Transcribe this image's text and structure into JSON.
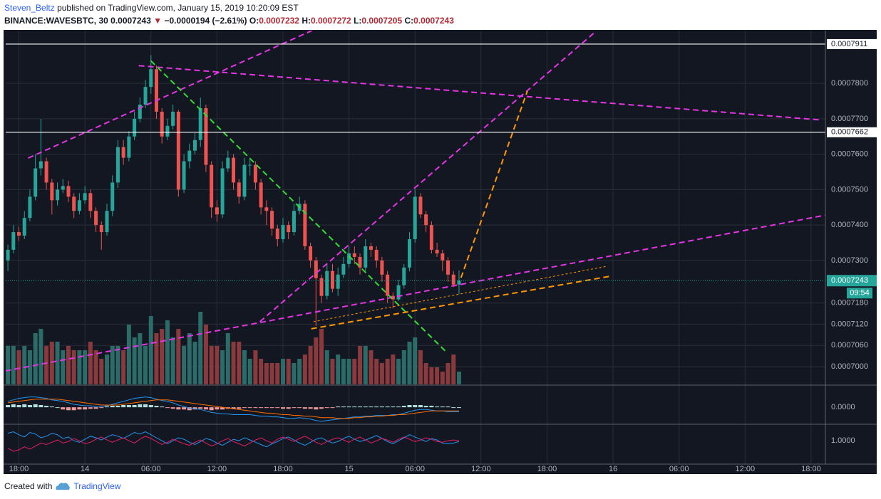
{
  "header": {
    "author": "Steven_Beltz",
    "published": "published on TradingView.com, January 15, 2019 10:20:09 EST",
    "symbol": "BINANCE:WAVESBTC, 30",
    "arrow": "▼",
    "change": "−0.0000194 (−2.61%)",
    "o_label": "O:",
    "h_label": "H:",
    "l_label": "L:",
    "c_label": "C:"
  },
  "footer": {
    "text": "Created with",
    "brand": "TradingView"
  },
  "chart_data": {
    "type": "candlestick",
    "x": [
      -1,
      -0.5,
      0,
      0.5,
      1,
      1.5,
      2,
      2.5,
      3,
      3.5,
      4,
      4.5,
      5,
      5.5,
      6,
      6.5,
      7,
      7.5,
      8,
      8.5,
      9,
      9.5,
      10,
      10.5,
      11,
      11.5,
      12,
      12.5,
      13,
      13.5,
      14,
      14.5,
      15,
      15.5,
      16,
      16.5,
      17,
      17.5,
      18,
      18.5,
      19,
      19.5,
      20,
      20.5,
      21,
      21.5,
      22,
      22.5,
      23,
      23.5,
      24,
      24.5,
      25,
      25.5,
      26,
      26.5,
      27,
      27.5,
      28,
      28.5,
      29,
      29.5,
      30,
      30.5,
      31,
      31.5,
      32,
      32.5,
      33,
      33.5,
      34,
      34.5,
      35,
      35.5,
      36,
      36.5,
      37,
      37.5,
      38,
      38.5,
      39,
      39.5,
      40
    ],
    "open": [
      0.00073,
      0.000733,
      0.000738,
      0.000737,
      0.000742,
      0.000748,
      0.000756,
      0.000758,
      0.000752,
      0.000747,
      0.00075,
      0.000751,
      0.000748,
      0.000744,
      0.000747,
      0.000749,
      0.000744,
      0.00074,
      0.000738,
      0.000744,
      0.000752,
      0.000762,
      0.000759,
      0.000765,
      0.00077,
      0.000774,
      0.000779,
      0.000784,
      0.000772,
      0.000765,
      0.000768,
      0.000772,
      0.00075,
      0.000758,
      0.000761,
      0.000764,
      0.000773,
      0.000757,
      0.000745,
      0.000743,
      0.000756,
      0.000759,
      0.000752,
      0.000748,
      0.000757,
      0.000757,
      0.000752,
      0.000745,
      0.000744,
      0.000739,
      0.000736,
      0.00074,
      0.000738,
      0.000744,
      0.000746,
      0.000734,
      0.00073,
      0.000725,
      0.00072,
      0.000727,
      0.000722,
      0.000726,
      0.000729,
      0.000732,
      0.000731,
      0.000728,
      0.000734,
      0.000733,
      0.00073,
      0.000726,
      0.00072,
      0.000719,
      0.000723,
      0.000728,
      0.000736,
      0.000748,
      0.000743,
      0.00074,
      0.000733,
      0.000732,
      0.00073,
      0.000726,
      0.0007232
    ],
    "high": [
      0.0007345,
      0.00074,
      0.0007395,
      0.000744,
      0.00075,
      0.00076,
      0.00077,
      0.000759,
      0.000753,
      0.000752,
      0.000753,
      0.0007525,
      0.000749,
      0.000749,
      0.000751,
      0.00075,
      0.000745,
      0.000741,
      0.000746,
      0.000754,
      0.000764,
      0.000764,
      0.0007665,
      0.000772,
      0.000776,
      0.000781,
      0.000788,
      0.000785,
      0.000773,
      0.00077,
      0.000774,
      0.0007725,
      0.00076,
      0.000763,
      0.000766,
      0.000776,
      0.000774,
      0.000758,
      0.000747,
      0.000758,
      0.000761,
      0.00076,
      0.000753,
      0.000759,
      0.000759,
      0.000758,
      0.000753,
      0.000747,
      0.000745,
      0.00074,
      0.000742,
      0.000741,
      0.000746,
      0.000748,
      0.000747,
      0.000735,
      0.000731,
      0.000726,
      0.000729,
      0.000729,
      0.000728,
      0.000731,
      0.000734,
      0.000734,
      0.000732,
      0.000736,
      0.000735,
      0.000734,
      0.000731,
      0.000727,
      0.000721,
      0.0007245,
      0.000729,
      0.000738,
      0.00075,
      0.000749,
      0.000744,
      0.000741,
      0.000735,
      0.000733,
      0.000731,
      0.000727,
      0.0007272
    ],
    "low": [
      0.000727,
      0.000732,
      0.0007355,
      0.000736,
      0.000741,
      0.000747,
      0.000754,
      0.00075,
      0.000743,
      0.0007455,
      0.000749,
      0.0007465,
      0.000742,
      0.000743,
      0.000746,
      0.000742,
      0.000738,
      0.000733,
      0.000737,
      0.0007425,
      0.0007505,
      0.000757,
      0.000758,
      0.000764,
      0.000769,
      0.000773,
      0.000777,
      0.00077,
      0.000763,
      0.000764,
      0.000767,
      0.000748,
      0.000749,
      0.000756,
      0.00076,
      0.000762,
      0.000755,
      0.000742,
      0.000741,
      0.000742,
      0.000755,
      0.00075,
      0.000746,
      0.000747,
      0.000754,
      0.00075,
      0.000743,
      0.00074,
      0.000737,
      0.000734,
      0.000735,
      0.000736,
      0.000737,
      0.000743,
      0.000733,
      0.000728,
      0.0007115,
      0.000718,
      0.000719,
      0.000721,
      0.00072,
      0.000725,
      0.000728,
      0.000729,
      0.000726,
      0.000727,
      0.000731,
      0.000728,
      0.000724,
      0.000718,
      0.0007165,
      0.0007185,
      0.000722,
      0.000727,
      0.000735,
      0.000742,
      0.000738,
      0.000732,
      0.000731,
      0.000727,
      0.000724,
      0.0007225,
      0.0007205
    ],
    "close": [
      0.000733,
      0.000738,
      0.000737,
      0.000742,
      0.000748,
      0.000756,
      0.000758,
      0.000752,
      0.000747,
      0.00075,
      0.000751,
      0.000748,
      0.000744,
      0.000747,
      0.000749,
      0.000744,
      0.00074,
      0.000738,
      0.000744,
      0.000752,
      0.000762,
      0.000759,
      0.000765,
      0.00077,
      0.000774,
      0.000779,
      0.000784,
      0.000772,
      0.000765,
      0.000768,
      0.000772,
      0.00075,
      0.000758,
      0.000761,
      0.000764,
      0.000773,
      0.000757,
      0.000745,
      0.000743,
      0.000756,
      0.000759,
      0.000752,
      0.000748,
      0.000757,
      0.000757,
      0.000752,
      0.000745,
      0.000744,
      0.000739,
      0.000736,
      0.00074,
      0.000738,
      0.000744,
      0.000746,
      0.000734,
      0.00073,
      0.000725,
      0.00072,
      0.000727,
      0.000722,
      0.000726,
      0.000729,
      0.000732,
      0.000731,
      0.000728,
      0.000734,
      0.000733,
      0.00073,
      0.000726,
      0.00072,
      0.000719,
      0.000723,
      0.000728,
      0.000736,
      0.000748,
      0.000743,
      0.00074,
      0.000733,
      0.000732,
      0.00073,
      0.000726,
      0.0007232,
      0.0007243
    ],
    "volume": [
      45,
      45,
      40,
      45,
      40,
      60,
      65,
      45,
      50,
      50,
      40,
      45,
      40,
      40,
      40,
      50,
      40,
      30,
      35,
      45,
      45,
      40,
      70,
      55,
      60,
      45,
      80,
      60,
      65,
      75,
      55,
      65,
      45,
      60,
      50,
      85,
      70,
      45,
      45,
      40,
      60,
      50,
      50,
      40,
      30,
      40,
      30,
      25,
      25,
      25,
      30,
      30,
      25,
      30,
      35,
      45,
      55,
      65,
      40,
      30,
      35,
      30,
      30,
      30,
      45,
      45,
      40,
      30,
      25,
      30,
      35,
      30,
      40,
      50,
      55,
      40,
      25,
      20,
      20,
      15,
      25,
      35,
      15
    ],
    "volume_ylim": [
      0,
      100
    ],
    "up_color": "#26a69a",
    "down_color": "#ef5350",
    "volume_up_color": "#2b6b68",
    "volume_down_color": "#8a3a3d",
    "xlim": [
      -1.2,
      73.3
    ],
    "ylim": [
      0.000695,
      0.0007945
    ],
    "xticks": [
      {
        "value": 0,
        "label": "18:00"
      },
      {
        "value": 6,
        "label": "14"
      },
      {
        "value": 12,
        "label": "06:00"
      },
      {
        "value": 18,
        "label": "12:00"
      },
      {
        "value": 24,
        "label": "18:00"
      },
      {
        "value": 30,
        "label": "15"
      },
      {
        "value": 36,
        "label": "06:00"
      },
      {
        "value": 42,
        "label": "12:00"
      },
      {
        "value": 48,
        "label": "18:00"
      },
      {
        "value": 54,
        "label": "16"
      },
      {
        "value": 60,
        "label": "06:00"
      },
      {
        "value": 66,
        "label": "12:00"
      },
      {
        "value": 72,
        "label": "18:00"
      }
    ],
    "yticks": [
      {
        "value": 0.00078,
        "label": "0.0007800"
      },
      {
        "value": 0.00077,
        "label": "0.0007700"
      },
      {
        "value": 0.00076,
        "label": "0.0007600"
      },
      {
        "value": 0.00075,
        "label": "0.0007500"
      },
      {
        "value": 0.00074,
        "label": "0.0007400"
      },
      {
        "value": 0.00073,
        "label": "0.0007300"
      },
      {
        "value": 0.000718,
        "label": "0.0007180"
      },
      {
        "value": 0.000712,
        "label": "0.0007120"
      },
      {
        "value": 0.000706,
        "label": "0.0007060"
      },
      {
        "value": 0.0007,
        "label": "0.0007000"
      }
    ],
    "grid": true,
    "grid_color": "#2a2e39",
    "hlines": [
      0.0007911,
      0.0007662
    ],
    "countdown": "09:54",
    "drawings": [
      {
        "color": "#e535e5",
        "points": [
          [
            0.84,
            0.0007589
          ],
          [
            26.77,
            0.0007951
          ]
        ]
      },
      {
        "color": "#e535e5",
        "points": [
          [
            10.89,
            0.000785
          ],
          [
            72.78,
            0.0007697
          ]
        ]
      },
      {
        "color": "#e535e5",
        "points": [
          [
            -1.23,
            0.0006988
          ],
          [
            73.3,
            0.0007428
          ]
        ]
      },
      {
        "color": "#e535e5",
        "points": [
          [
            21.9,
            0.0007127
          ],
          [
            52.37,
            0.0007945
          ]
        ]
      },
      {
        "color": "#33dd33",
        "points": [
          [
            11.99,
            0.0007864
          ],
          [
            38.76,
            0.0007044
          ]
        ]
      },
      {
        "color": "#ff9800",
        "points": [
          [
            40.18,
            0.0007251
          ],
          [
            46.21,
            0.0007778
          ]
        ]
      },
      {
        "color": "#ff9800",
        "points": [
          [
            26.57,
            0.0007107
          ],
          [
            53.66,
            0.0007255
          ]
        ]
      },
      {
        "color": "#ff9800",
        "thin": true,
        "points": [
          [
            26.77,
            0.0007127
          ],
          [
            53.34,
            0.0007283
          ]
        ]
      }
    ],
    "macd": {
      "ylim": [
        -22,
        28
      ],
      "yticks": [
        {
          "value": 0,
          "label": "0.0000"
        }
      ],
      "up_color": "#b2dfdb",
      "down_color": "#ef9a9a",
      "macd_color": "#2196f3",
      "signal_color": "#ff6d00",
      "histogram": [
        3,
        4,
        3,
        4,
        3,
        4,
        3,
        2,
        1,
        0,
        -3,
        -4,
        -4,
        -3,
        -3,
        -2,
        -2,
        -1,
        1,
        2,
        2,
        3,
        3,
        3,
        4,
        4,
        3,
        2,
        1,
        -1,
        -2,
        -3,
        -3,
        -4,
        -3,
        -2,
        -3,
        -4,
        -3,
        -3,
        -2,
        -2,
        -2,
        -1,
        -1,
        -1,
        -1,
        -1,
        -1,
        -1,
        -2,
        -2,
        -1,
        -1,
        -2,
        -2,
        -3,
        -2,
        -1,
        -1,
        1,
        1,
        1,
        1,
        1,
        1,
        1,
        1,
        1,
        1,
        1,
        1,
        2,
        3,
        3,
        3,
        2,
        2,
        1,
        1,
        1,
        0,
        0
      ],
      "macd_line": [
        8,
        10,
        12,
        13,
        14,
        14,
        13,
        12,
        10,
        9,
        8,
        6,
        4,
        3,
        2,
        2,
        1,
        1,
        2,
        4,
        6,
        8,
        10,
        12,
        13,
        14,
        13,
        11,
        9,
        8,
        6,
        3,
        1,
        -1,
        -2,
        -3,
        -5,
        -7,
        -8,
        -9,
        -9,
        -10,
        -10,
        -10,
        -10,
        -11,
        -12,
        -12,
        -13,
        -13,
        -14,
        -15,
        -15,
        -14,
        -15,
        -16,
        -18,
        -19,
        -18,
        -17,
        -16,
        -15,
        -14,
        -13,
        -13,
        -12,
        -12,
        -11,
        -11,
        -11,
        -10,
        -10,
        -8,
        -6,
        -4,
        -3,
        -3,
        -4,
        -5,
        -5,
        -6,
        -6,
        -6
      ],
      "signal_line": [
        6,
        7,
        8,
        9,
        10,
        11,
        11,
        11,
        11,
        11,
        10,
        9,
        8,
        7,
        6,
        5,
        4,
        3,
        3,
        3,
        3,
        4,
        5,
        6,
        7,
        8,
        9,
        10,
        10,
        10,
        9,
        8,
        7,
        6,
        5,
        4,
        3,
        2,
        1,
        0,
        -1,
        -2,
        -3,
        -4,
        -5,
        -6,
        -7,
        -8,
        -8,
        -9,
        -10,
        -10,
        -11,
        -11,
        -12,
        -12,
        -13,
        -14,
        -14,
        -14,
        -15,
        -15,
        -15,
        -14,
        -14,
        -13,
        -13,
        -12,
        -12,
        -11,
        -11,
        -10,
        -10,
        -9,
        -8,
        -7,
        -6,
        -5,
        -5,
        -5,
        -5,
        -5,
        -5
      ]
    },
    "oscillator": {
      "ylim": [
        0.97,
        1.02
      ],
      "yticks": [
        {
          "value": 1,
          "label": "1.0000"
        }
      ],
      "series": [
        {
          "color": "#2196f3",
          "values": [
            1.01,
            1.012,
            1.008,
            1.005,
            1.011,
            1.009,
            1.004,
            1.006,
            1.01,
            1.008,
            1.003,
            1.005,
            1.0,
            0.998,
            1.002,
            1.006,
            1.004,
            1.001,
            1.005,
            1.008,
            1.006,
            1.003,
            1.007,
            1.011,
            1.009,
            1.012,
            1.008,
            1.004,
            1.0,
            0.996,
            1.0,
            1.004,
            1.002,
            0.998,
            0.995,
            0.999,
            1.003,
            1.001,
            0.997,
            0.994,
            0.998,
            1.002,
            1.0,
            1.004,
            1.001,
            0.998,
            0.995,
            0.992,
            0.996,
            0.999,
            1.003,
            1.005,
            1.001,
            0.997,
            0.994,
            0.998,
            1.002,
            1.004,
            1.0,
            0.997,
            0.999,
            1.003,
            1.006,
            1.002,
            0.999,
            1.001,
            1.004,
            1.007,
            1.003,
            0.999,
            0.996,
            1.0,
            1.004,
            1.008,
            1.005,
            1.002,
            0.999,
            1.003,
            1.001,
            0.997,
            0.996,
            0.997,
            0.999
          ]
        },
        {
          "color": "#e91e63",
          "values": [
            0.99,
            0.986,
            0.988,
            0.992,
            0.989,
            0.993,
            0.997,
            0.995,
            0.998,
            1.001,
            0.997,
            0.999,
            1.003,
            1.0,
            0.996,
            0.998,
            1.002,
            1.005,
            1.001,
            0.998,
            1.001,
            1.004,
            1.0,
            0.997,
            1.002,
            1.006,
            1.003,
            0.999,
            0.995,
            0.998,
            1.002,
            0.999,
            0.996,
            0.994,
            0.998,
            1.001,
            0.997,
            0.993,
            0.996,
            1.0,
            1.003,
            0.999,
            0.996,
            0.993,
            0.997,
            1.001,
            1.004,
            1.0,
            0.997,
            1.002,
            1.005,
            1.002,
            0.999,
            1.003,
            1.006,
            1.002,
            0.998,
            0.995,
            0.999,
            1.002,
            1.004,
            1.001,
            0.998,
            1.002,
            1.005,
            1.001,
            0.997,
            1.0,
            1.003,
            1.001,
            0.998,
            1.002,
            1.005,
            1.002,
            0.999,
            1.001,
            1.004,
            1.002,
            0.999,
            0.998,
            1.0,
            1.001,
            1.0
          ]
        }
      ]
    }
  }
}
